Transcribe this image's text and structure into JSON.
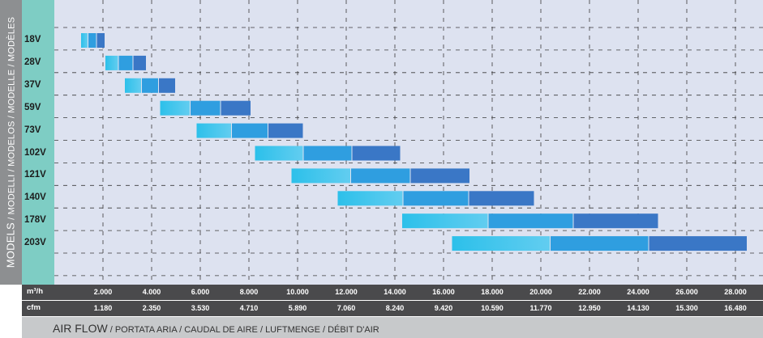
{
  "chart_data": {
    "type": "range-bar",
    "ylabel": "MODELS",
    "ylabel_suffix": " / MODELLI / MODELOS / MODELLE / MODÈLES",
    "xlabel": "AIR FLOW",
    "xlabel_suffix": " / PORTATA ARIA / CAUDAL DE AIRE / LUFTMENGE / DÉBIT D'AIR",
    "scale_m3h_label": "m³/h",
    "scale_cfm_label": "cfm",
    "x_ticks_m3h": [
      "2.000",
      "4.000",
      "6.000",
      "8.000",
      "10.000",
      "12.000",
      "14.000",
      "16.000",
      "18.000",
      "20.000",
      "22.000",
      "24.000",
      "26.000",
      "28.000"
    ],
    "x_ticks_cfm": [
      "1.180",
      "2.350",
      "3.530",
      "4.710",
      "5.890",
      "7.060",
      "8.240",
      "9.420",
      "10.590",
      "11.770",
      "12.950",
      "14.130",
      "15.300",
      "16.480"
    ],
    "xlim_m3h": [
      0,
      29000
    ],
    "grid": true,
    "categories": [
      "18V",
      "28V",
      "37V",
      "59V",
      "73V",
      "102V",
      "121V",
      "140V",
      "178V",
      "203V"
    ],
    "series": [
      {
        "model": "18V",
        "segments": [
          [
            1100,
            1400
          ],
          [
            1400,
            1750
          ],
          [
            1750,
            2100
          ]
        ]
      },
      {
        "model": "28V",
        "segments": [
          [
            2100,
            2650
          ],
          [
            2650,
            3250
          ],
          [
            3250,
            3800
          ]
        ]
      },
      {
        "model": "37V",
        "segments": [
          [
            2900,
            3600
          ],
          [
            3600,
            4300
          ],
          [
            4300,
            5000
          ]
        ]
      },
      {
        "model": "59V",
        "segments": [
          [
            4350,
            5600
          ],
          [
            5600,
            6850
          ],
          [
            6850,
            8100
          ]
        ]
      },
      {
        "model": "73V",
        "segments": [
          [
            5850,
            7300
          ],
          [
            7300,
            8800
          ],
          [
            8800,
            10250
          ]
        ]
      },
      {
        "model": "102V",
        "segments": [
          [
            8250,
            10250
          ],
          [
            10250,
            12250
          ],
          [
            12250,
            14250
          ]
        ]
      },
      {
        "model": "121V",
        "segments": [
          [
            9750,
            12200
          ],
          [
            12200,
            14650
          ],
          [
            14650,
            17100
          ]
        ]
      },
      {
        "model": "140V",
        "segments": [
          [
            11650,
            14350
          ],
          [
            14350,
            17050
          ],
          [
            17050,
            19750
          ]
        ]
      },
      {
        "model": "178V",
        "segments": [
          [
            14300,
            17850
          ],
          [
            17850,
            21350
          ],
          [
            21350,
            24850
          ]
        ]
      },
      {
        "model": "203V",
        "segments": [
          [
            16350,
            20400
          ],
          [
            20400,
            24450
          ],
          [
            24450,
            28500
          ]
        ]
      }
    ]
  },
  "colors": {
    "seg1_from": "#2cc0ea",
    "seg1_to": "#62cdf0",
    "seg2": "#2f9ee0",
    "seg3": "#3a77c6"
  }
}
